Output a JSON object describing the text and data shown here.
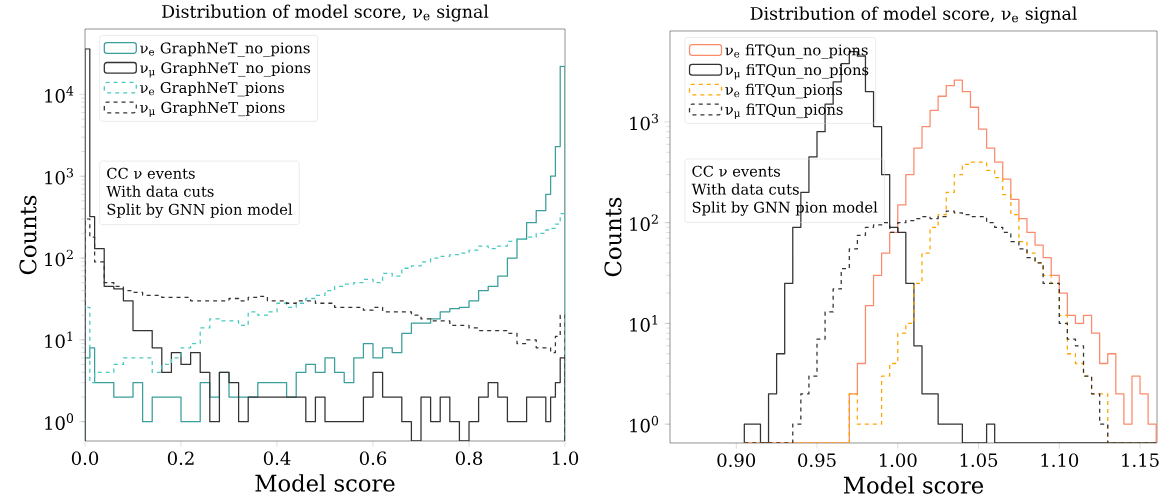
{
  "chart_data": [
    {
      "type": "histogram",
      "title": "Distribution of model score, ν$_{e}$ signal",
      "xlabel": "Model score",
      "ylabel": "Counts",
      "bins": [
        0,
        0.01,
        0.02,
        0.04,
        0.06,
        0.08,
        0.1,
        0.12,
        0.14,
        0.16,
        0.18,
        0.2,
        0.22,
        0.24,
        0.26,
        0.28,
        0.3,
        0.32,
        0.34,
        0.36,
        0.38,
        0.4,
        0.42,
        0.44,
        0.46,
        0.48,
        0.5,
        0.52,
        0.54,
        0.56,
        0.58,
        0.6,
        0.62,
        0.64,
        0.66,
        0.68,
        0.7,
        0.72,
        0.74,
        0.76,
        0.78,
        0.8,
        0.82,
        0.84,
        0.86,
        0.88,
        0.9,
        0.92,
        0.94,
        0.96,
        0.97,
        0.98,
        0.99,
        1.0
      ],
      "series": [
        {
          "name": "ν$_{e}$ GraphNeT_no_pions",
          "color": "#3a9e9a",
          "line_style": "solid",
          "values": [
            6,
            8,
            3,
            3,
            2,
            2,
            3,
            1,
            2,
            2,
            2,
            1,
            1,
            3,
            2,
            4,
            2,
            2,
            2,
            3,
            3,
            3,
            2,
            4,
            5,
            4,
            6,
            4,
            3,
            6,
            9,
            6,
            8,
            7,
            12,
            16,
            16,
            18,
            22,
            24,
            25,
            30,
            40,
            45,
            60,
            100,
            170,
            270,
            380,
            600,
            1000,
            2300,
            22000
          ]
        },
        {
          "name": "ν$_{μ}$ GraphNeT_no_pions",
          "color": "#333333",
          "line_style": "solid",
          "values": [
            36000,
            320,
            130,
            45,
            42,
            30,
            13,
            13,
            8,
            4,
            7,
            5,
            7,
            4,
            1,
            4,
            3,
            1,
            2,
            2,
            2,
            2,
            2,
            2,
            1,
            2,
            1,
            1,
            1,
            1,
            2,
            4,
            2,
            2,
            1,
            null,
            2,
            1,
            2,
            1,
            null,
            1,
            2,
            3,
            2,
            1,
            1,
            2,
            2,
            1,
            2,
            3,
            6
          ]
        },
        {
          "name": "ν$_{e}$ GraphNeT_pions",
          "color": "#48c9c0",
          "line_style": "dashed",
          "values": [
            25,
            3,
            4,
            4,
            5,
            6,
            6,
            6,
            4,
            5,
            6,
            8,
            9,
            14,
            18,
            17,
            17,
            15,
            22,
            20,
            22,
            28,
            25,
            28,
            32,
            35,
            40,
            45,
            48,
            50,
            55,
            50,
            65,
            60,
            75,
            80,
            90,
            100,
            105,
            110,
            115,
            125,
            140,
            130,
            140,
            160,
            170,
            180,
            200,
            220,
            230,
            260,
            350
          ]
        },
        {
          "name": "ν$_{μ}$ GraphNeT_pions",
          "color": "#333333",
          "line_style": "dashed",
          "values": [
            300,
            180,
            90,
            50,
            45,
            40,
            38,
            35,
            35,
            33,
            33,
            33,
            30,
            30,
            30,
            30,
            32,
            30,
            33,
            34,
            30,
            30,
            28,
            30,
            30,
            28,
            28,
            25,
            25,
            25,
            23,
            25,
            22,
            22,
            22,
            20,
            18,
            17,
            17,
            15,
            15,
            14,
            13,
            13,
            13,
            12,
            9,
            10,
            8,
            8,
            7,
            11,
            20
          ]
        }
      ],
      "xlim": [
        0,
        1
      ],
      "ylim": [
        0.58,
        63000
      ],
      "xticks": [
        {
          "value": 0,
          "label": "0.0"
        },
        0.2,
        0.4,
        0.6,
        0.8,
        {
          "value": 1,
          "label": "1.0"
        }
      ],
      "yticks": [
        {
          "value": 1,
          "label": "10$^{0}$"
        },
        {
          "value": 10,
          "label": "10$^{1}$"
        },
        {
          "value": 100,
          "label": "10$^{2}$"
        },
        {
          "value": 1000,
          "label": "10$^{3}$"
        },
        {
          "value": 10000,
          "label": "10$^{4}$"
        }
      ],
      "log": "y",
      "legend": "top left",
      "annotations": [
        "CC ν events",
        "With data cuts",
        "Split by GNN pion model"
      ]
    },
    {
      "type": "histogram",
      "title": "Distribution of model score, ν$_{e}$ signal",
      "xlabel": "Model score",
      "ylabel": "Counts",
      "bins": [
        0.905,
        0.91,
        0.915,
        0.92,
        0.925,
        0.93,
        0.935,
        0.94,
        0.945,
        0.95,
        0.955,
        0.96,
        0.965,
        0.97,
        0.975,
        0.98,
        0.985,
        0.99,
        0.995,
        1.0,
        1.005,
        1.01,
        1.015,
        1.02,
        1.025,
        1.03,
        1.035,
        1.04,
        1.045,
        1.05,
        1.055,
        1.06,
        1.065,
        1.07,
        1.075,
        1.08,
        1.085,
        1.09,
        1.095,
        1.1,
        1.105,
        1.11,
        1.115,
        1.12,
        1.125,
        1.13,
        1.135,
        1.14,
        1.145,
        1.15,
        1.155,
        1.16
      ],
      "series": [
        {
          "name": "ν$_{e}$ fiTQun_no_pions",
          "color": "#fa8c6c",
          "line_style": "solid",
          "values": [
            null,
            null,
            null,
            null,
            null,
            null,
            null,
            null,
            null,
            null,
            null,
            null,
            null,
            2,
            4,
            15,
            30,
            50,
            80,
            150,
            300,
            550,
            900,
            1300,
            1800,
            2300,
            2600,
            2000,
            1400,
            850,
            550,
            400,
            270,
            170,
            110,
            80,
            60,
            45,
            30,
            20,
            12,
            10,
            12,
            8,
            4,
            5,
            2,
            1,
            3,
            2,
            1
          ]
        },
        {
          "name": "ν$_{μ}$ fiTQun_no_pions",
          "color": "#333333",
          "line_style": "solid",
          "values": [
            1,
            1,
            null,
            2,
            5,
            25,
            90,
            200,
            450,
            800,
            1500,
            2500,
            3800,
            5000,
            4500,
            2000,
            900,
            300,
            90,
            80,
            25,
            6,
            2,
            2,
            1,
            1,
            1,
            null,
            null,
            null,
            1,
            null,
            null,
            null,
            null,
            null,
            null,
            null,
            null,
            null,
            null,
            null,
            null,
            null,
            null,
            null,
            null,
            null,
            null,
            null,
            null
          ]
        },
        {
          "name": "ν$_{e}$ fiTQun_pions",
          "color": "#ffa500",
          "line_style": "dashed",
          "values": [
            null,
            null,
            null,
            null,
            null,
            null,
            null,
            null,
            null,
            null,
            null,
            null,
            null,
            2,
            1,
            1,
            1,
            3,
            4,
            8,
            10,
            25,
            50,
            90,
            120,
            200,
            300,
            380,
            400,
            400,
            330,
            280,
            190,
            120,
            65,
            50,
            40,
            30,
            25,
            12,
            5,
            4,
            3,
            2,
            2,
            null,
            null,
            null,
            null,
            null,
            null
          ]
        },
        {
          "name": "ν$_{μ}$ fiTQun_pions",
          "color": "#333333",
          "line_style": "dashed",
          "values": [
            null,
            null,
            null,
            null,
            null,
            null,
            1,
            2,
            3,
            7,
            13,
            22,
            35,
            55,
            75,
            90,
            95,
            100,
            80,
            100,
            105,
            110,
            115,
            110,
            115,
            130,
            125,
            120,
            115,
            115,
            100,
            90,
            80,
            65,
            55,
            45,
            40,
            25,
            25,
            10,
            7,
            6,
            3,
            2,
            1,
            null,
            null,
            null,
            null,
            null,
            null
          ]
        }
      ],
      "xlim": [
        0.859,
        1.1605
      ],
      "ylim": [
        0.65,
        8000
      ],
      "xticks": [
        {
          "value": 0.9,
          "label": "0.90"
        },
        0.95,
        {
          "value": 1.0,
          "label": "1.00"
        },
        1.05,
        {
          "value": 1.1,
          "label": "1.10"
        },
        1.15
      ],
      "yticks": [
        {
          "value": 1,
          "label": "10$^{0}$"
        },
        {
          "value": 10,
          "label": "10$^{1}$"
        },
        {
          "value": 100,
          "label": "10$^{2}$"
        },
        {
          "value": 1000,
          "label": "10$^{3}$"
        }
      ],
      "log": "y",
      "legend": "top left",
      "annotations": [
        "CC ν events",
        "With data cuts",
        "Split by GNN pion model"
      ]
    }
  ]
}
